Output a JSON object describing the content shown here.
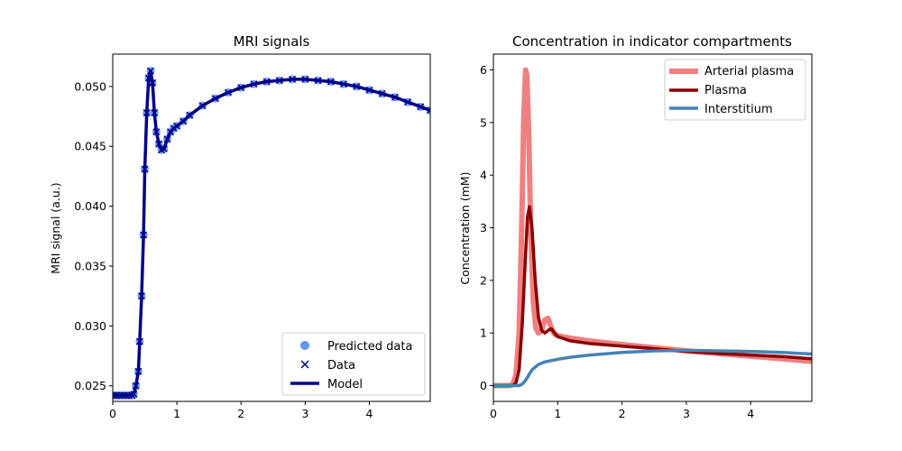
{
  "chart_data": [
    {
      "type": "line",
      "title": "MRI signals",
      "xlabel": "",
      "ylabel": "MRI signal (a.u.)",
      "xlim": [
        0,
        4.95
      ],
      "ylim": [
        0.0237,
        0.0527
      ],
      "xticks": [
        "0",
        "1",
        "2",
        "3",
        "4"
      ],
      "yticks": [
        "0.025",
        "0.030",
        "0.035",
        "0.040",
        "0.045",
        "0.050"
      ],
      "legend_position": "lower-right",
      "series": [
        {
          "name": "Predicted data",
          "marker": "circle",
          "color": "#6495ED",
          "x": [
            0,
            0.05,
            0.1,
            0.15,
            0.2,
            0.25,
            0.3,
            0.33,
            0.36,
            0.4,
            0.42,
            0.45,
            0.48,
            0.5,
            0.53,
            0.56,
            0.59,
            0.62,
            0.65,
            0.68,
            0.72,
            0.76,
            0.8,
            0.85,
            0.9,
            0.95,
            1.0,
            1.1,
            1.2,
            1.4,
            1.6,
            1.8,
            2.0,
            2.2,
            2.4,
            2.6,
            2.8,
            3.0,
            3.2,
            3.4,
            3.6,
            3.8,
            4.0,
            4.2,
            4.4,
            4.6,
            4.8,
            4.95
          ],
          "y": [
            0.0242,
            0.0242,
            0.0242,
            0.0242,
            0.0242,
            0.0242,
            0.0242,
            0.0243,
            0.025,
            0.0262,
            0.0287,
            0.0325,
            0.0376,
            0.0431,
            0.0478,
            0.0507,
            0.0513,
            0.0503,
            0.0478,
            0.0462,
            0.0452,
            0.0447,
            0.0448,
            0.0456,
            0.0462,
            0.0465,
            0.0467,
            0.0471,
            0.0476,
            0.0484,
            0.049,
            0.0495,
            0.0499,
            0.0502,
            0.0504,
            0.0505,
            0.0506,
            0.0506,
            0.0505,
            0.0504,
            0.0502,
            0.05,
            0.0497,
            0.0494,
            0.0491,
            0.0487,
            0.0483,
            0.048
          ]
        },
        {
          "name": "Data",
          "marker": "x",
          "color": "#00008B",
          "x": [
            0,
            0.05,
            0.1,
            0.15,
            0.2,
            0.25,
            0.3,
            0.33,
            0.36,
            0.4,
            0.42,
            0.45,
            0.48,
            0.5,
            0.53,
            0.56,
            0.59,
            0.62,
            0.65,
            0.68,
            0.72,
            0.76,
            0.8,
            0.85,
            0.9,
            0.95,
            1.0,
            1.1,
            1.2,
            1.4,
            1.6,
            1.8,
            2.0,
            2.2,
            2.4,
            2.6,
            2.8,
            3.0,
            3.2,
            3.4,
            3.6,
            3.8,
            4.0,
            4.2,
            4.4,
            4.6,
            4.8,
            4.95
          ],
          "y": [
            0.0242,
            0.0242,
            0.0242,
            0.0242,
            0.0242,
            0.0242,
            0.0242,
            0.0243,
            0.025,
            0.0262,
            0.0287,
            0.0325,
            0.0376,
            0.0431,
            0.0478,
            0.0507,
            0.0513,
            0.0503,
            0.0478,
            0.0462,
            0.0452,
            0.0447,
            0.0448,
            0.0456,
            0.0462,
            0.0465,
            0.0467,
            0.0471,
            0.0476,
            0.0484,
            0.049,
            0.0495,
            0.0499,
            0.0502,
            0.0504,
            0.0505,
            0.0506,
            0.0506,
            0.0505,
            0.0504,
            0.0502,
            0.05,
            0.0497,
            0.0494,
            0.0491,
            0.0487,
            0.0483,
            0.048
          ]
        },
        {
          "name": "Model",
          "marker": "none",
          "color": "#00008B",
          "x": [
            0,
            0.3,
            0.33,
            0.36,
            0.4,
            0.42,
            0.45,
            0.48,
            0.5,
            0.53,
            0.56,
            0.59,
            0.62,
            0.65,
            0.68,
            0.72,
            0.76,
            0.8,
            0.85,
            0.9,
            0.95,
            1.0,
            1.1,
            1.2,
            1.4,
            1.6,
            1.8,
            2.0,
            2.2,
            2.4,
            2.6,
            2.8,
            3.0,
            3.2,
            3.4,
            3.6,
            3.8,
            4.0,
            4.2,
            4.4,
            4.6,
            4.8,
            4.95
          ],
          "y": [
            0.0242,
            0.0242,
            0.0243,
            0.025,
            0.0262,
            0.0287,
            0.0325,
            0.0376,
            0.0431,
            0.0478,
            0.0507,
            0.0513,
            0.0503,
            0.0478,
            0.0462,
            0.0452,
            0.0447,
            0.0448,
            0.0456,
            0.0462,
            0.0465,
            0.0467,
            0.0471,
            0.0476,
            0.0484,
            0.049,
            0.0495,
            0.0499,
            0.0502,
            0.0504,
            0.0505,
            0.0506,
            0.0506,
            0.0505,
            0.0504,
            0.0502,
            0.05,
            0.0497,
            0.0494,
            0.0491,
            0.0487,
            0.0483,
            0.048
          ]
        }
      ]
    },
    {
      "type": "line",
      "title": "Concentration in indicator compartments",
      "xlabel": "",
      "ylabel": "Concentration (mM)",
      "xlim": [
        0,
        4.95
      ],
      "ylim": [
        -0.3,
        6.3
      ],
      "xticks": [
        "0",
        "1",
        "2",
        "3",
        "4"
      ],
      "yticks": [
        "0",
        "1",
        "2",
        "3",
        "4",
        "5",
        "6"
      ],
      "legend_position": "upper-right",
      "series": [
        {
          "name": "Arterial plasma",
          "color": "#F08080",
          "linewidth": 6,
          "x": [
            0,
            0.25,
            0.3,
            0.35,
            0.4,
            0.44,
            0.47,
            0.5,
            0.52,
            0.55,
            0.58,
            0.62,
            0.66,
            0.7,
            0.75,
            0.8,
            0.85,
            0.9,
            0.95,
            1.0,
            1.2,
            1.5,
            2.0,
            2.5,
            3.0,
            3.5,
            4.0,
            4.5,
            4.95
          ],
          "y": [
            0,
            0,
            0.02,
            0.2,
            1.0,
            3.0,
            5.0,
            6.0,
            5.9,
            4.8,
            3.0,
            1.6,
            1.1,
            1.0,
            1.05,
            1.25,
            1.28,
            1.1,
            0.98,
            0.95,
            0.9,
            0.85,
            0.78,
            0.72,
            0.66,
            0.61,
            0.56,
            0.51,
            0.46
          ]
        },
        {
          "name": "Plasma",
          "color": "#8B0000",
          "linewidth": 3.5,
          "x": [
            0,
            0.3,
            0.35,
            0.4,
            0.45,
            0.5,
            0.53,
            0.56,
            0.6,
            0.65,
            0.7,
            0.75,
            0.8,
            0.85,
            0.9,
            0.95,
            1.0,
            1.2,
            1.5,
            2.0,
            2.5,
            3.0,
            3.5,
            4.0,
            4.5,
            4.95
          ],
          "y": [
            0,
            0,
            0.05,
            0.3,
            1.2,
            2.5,
            3.2,
            3.4,
            3.0,
            2.0,
            1.3,
            1.05,
            1.0,
            1.05,
            1.08,
            1.0,
            0.93,
            0.85,
            0.8,
            0.75,
            0.7,
            0.65,
            0.61,
            0.58,
            0.55,
            0.51
          ]
        },
        {
          "name": "Interstitium",
          "color": "#4682B4",
          "linewidth": 3.5,
          "x": [
            0,
            0.4,
            0.45,
            0.5,
            0.55,
            0.6,
            0.7,
            0.8,
            1.0,
            1.2,
            1.5,
            2.0,
            2.5,
            3.0,
            3.5,
            4.0,
            4.5,
            4.95
          ],
          "y": [
            0,
            0,
            0.03,
            0.1,
            0.2,
            0.3,
            0.4,
            0.45,
            0.5,
            0.54,
            0.58,
            0.63,
            0.66,
            0.67,
            0.66,
            0.65,
            0.63,
            0.6
          ]
        }
      ]
    }
  ]
}
